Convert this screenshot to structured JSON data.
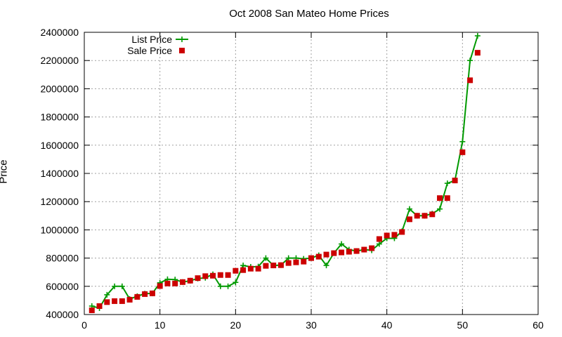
{
  "chart_data": {
    "type": "scatter",
    "title": "Oct 2008 San Mateo Home Prices",
    "xlabel": "",
    "ylabel": "Price",
    "xlim": [
      0,
      60
    ],
    "ylim": [
      400000,
      2400000
    ],
    "x_ticks": [
      0,
      10,
      20,
      30,
      40,
      50,
      60
    ],
    "y_ticks": [
      400000,
      600000,
      800000,
      1000000,
      1200000,
      1400000,
      1600000,
      1800000,
      2000000,
      2200000,
      2400000
    ],
    "grid": true,
    "legend_position": "top-left",
    "series": [
      {
        "name": "List Price",
        "style": "line-points",
        "color": "#009900",
        "points": [
          [
            1,
            460000
          ],
          [
            2,
            445000
          ],
          [
            3,
            540000
          ],
          [
            4,
            600000
          ],
          [
            5,
            600000
          ],
          [
            6,
            510000
          ],
          [
            7,
            530000
          ],
          [
            8,
            548000
          ],
          [
            9,
            550000
          ],
          [
            10,
            625000
          ],
          [
            11,
            650000
          ],
          [
            12,
            648000
          ],
          [
            13,
            630000
          ],
          [
            14,
            640000
          ],
          [
            15,
            655000
          ],
          [
            16,
            660000
          ],
          [
            17,
            685000
          ],
          [
            18,
            600000
          ],
          [
            19,
            600000
          ],
          [
            20,
            628000
          ],
          [
            21,
            748000
          ],
          [
            22,
            738000
          ],
          [
            23,
            740000
          ],
          [
            24,
            800000
          ],
          [
            25,
            748000
          ],
          [
            26,
            750000
          ],
          [
            27,
            800000
          ],
          [
            28,
            800000
          ],
          [
            29,
            795000
          ],
          [
            30,
            800000
          ],
          [
            31,
            820000
          ],
          [
            32,
            748000
          ],
          [
            33,
            835000
          ],
          [
            34,
            900000
          ],
          [
            35,
            860000
          ],
          [
            36,
            850000
          ],
          [
            37,
            860000
          ],
          [
            38,
            855000
          ],
          [
            39,
            900000
          ],
          [
            40,
            940000
          ],
          [
            41,
            940000
          ],
          [
            42,
            990000
          ],
          [
            43,
            1148000
          ],
          [
            44,
            1100000
          ],
          [
            45,
            1100000
          ],
          [
            46,
            1115000
          ],
          [
            47,
            1148000
          ],
          [
            48,
            1330000
          ],
          [
            49,
            1350000
          ],
          [
            50,
            1625000
          ],
          [
            51,
            2200000
          ],
          [
            52,
            2375000
          ]
        ]
      },
      {
        "name": "Sale Price",
        "style": "points",
        "color": "#cc0000",
        "points": [
          [
            1,
            430000
          ],
          [
            2,
            460000
          ],
          [
            3,
            488000
          ],
          [
            4,
            495000
          ],
          [
            5,
            495000
          ],
          [
            6,
            505000
          ],
          [
            7,
            525000
          ],
          [
            8,
            545000
          ],
          [
            9,
            550000
          ],
          [
            10,
            602000
          ],
          [
            11,
            620000
          ],
          [
            12,
            620000
          ],
          [
            13,
            630000
          ],
          [
            14,
            640000
          ],
          [
            15,
            658000
          ],
          [
            16,
            672000
          ],
          [
            17,
            675000
          ],
          [
            18,
            680000
          ],
          [
            19,
            680000
          ],
          [
            20,
            710000
          ],
          [
            21,
            715000
          ],
          [
            22,
            725000
          ],
          [
            23,
            725000
          ],
          [
            24,
            745000
          ],
          [
            25,
            748000
          ],
          [
            26,
            750000
          ],
          [
            27,
            765000
          ],
          [
            28,
            770000
          ],
          [
            29,
            775000
          ],
          [
            30,
            800000
          ],
          [
            31,
            810000
          ],
          [
            32,
            825000
          ],
          [
            33,
            835000
          ],
          [
            34,
            840000
          ],
          [
            35,
            845000
          ],
          [
            36,
            850000
          ],
          [
            37,
            860000
          ],
          [
            38,
            870000
          ],
          [
            39,
            935000
          ],
          [
            40,
            960000
          ],
          [
            41,
            965000
          ],
          [
            42,
            985000
          ],
          [
            43,
            1075000
          ],
          [
            44,
            1100000
          ],
          [
            45,
            1100000
          ],
          [
            46,
            1110000
          ],
          [
            47,
            1225000
          ],
          [
            48,
            1225000
          ],
          [
            49,
            1350000
          ],
          [
            50,
            1550000
          ],
          [
            51,
            2060000
          ],
          [
            52,
            2255000
          ]
        ]
      }
    ]
  }
}
